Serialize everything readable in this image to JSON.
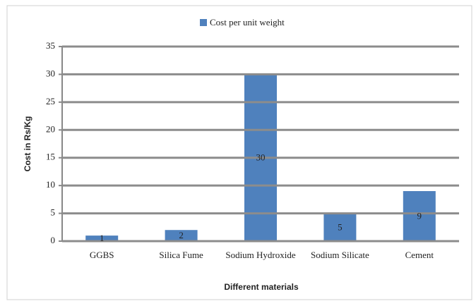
{
  "chart_data": {
    "type": "bar",
    "categories": [
      "GGBS",
      "Silica Fume",
      "Sodium Hydroxide",
      "Sodium Silicate",
      "Cement"
    ],
    "series": [
      {
        "name": "Cost per unit weight",
        "color": "#4f81bd",
        "values": [
          1,
          2,
          30,
          5,
          9
        ]
      }
    ],
    "ylim": [
      0,
      35
    ],
    "yticks": [
      0,
      5,
      10,
      15,
      20,
      25,
      30,
      35
    ],
    "grid": true,
    "x_label": "Different materials",
    "y_label": "Cost in Rs/Kg",
    "legend": "top"
  }
}
